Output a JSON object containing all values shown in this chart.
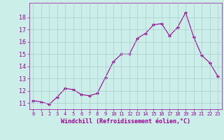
{
  "x": [
    0,
    1,
    2,
    3,
    4,
    5,
    6,
    7,
    8,
    9,
    10,
    11,
    12,
    13,
    14,
    15,
    16,
    17,
    18,
    19,
    20,
    21,
    22,
    23
  ],
  "y": [
    11.2,
    11.1,
    10.9,
    11.5,
    12.2,
    12.1,
    11.7,
    11.6,
    11.8,
    13.1,
    14.4,
    15.0,
    15.0,
    16.3,
    16.7,
    17.4,
    17.5,
    16.5,
    17.2,
    18.4,
    16.4,
    14.9,
    14.3,
    13.2
  ],
  "line_color": "#990099",
  "marker": "D",
  "marker_size": 2,
  "bg_color": "#cceee8",
  "grid_color": "#aacccc",
  "xlabel": "Windchill (Refroidissement éolien,°C)",
  "xlabel_color": "#990099",
  "tick_color": "#990099",
  "ylim": [
    10.5,
    19.2
  ],
  "xlim": [
    -0.5,
    23.5
  ],
  "yticks": [
    11,
    12,
    13,
    14,
    15,
    16,
    17,
    18
  ],
  "xticks": [
    0,
    1,
    2,
    3,
    4,
    5,
    6,
    7,
    8,
    9,
    10,
    11,
    12,
    13,
    14,
    15,
    16,
    17,
    18,
    19,
    20,
    21,
    22,
    23
  ]
}
